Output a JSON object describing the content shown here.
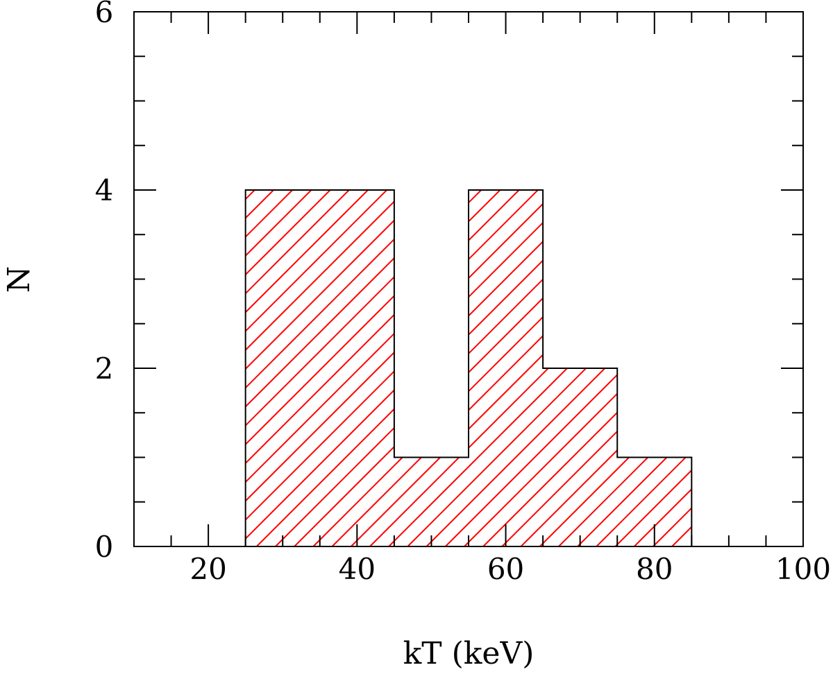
{
  "chart_data": {
    "type": "bar",
    "subtype": "histogram",
    "title": "",
    "xlabel": "kT (keV)",
    "ylabel": "N",
    "xlim": [
      10,
      100
    ],
    "ylim": [
      0,
      6
    ],
    "bin_edges": [
      25,
      35,
      45,
      55,
      65,
      75,
      85
    ],
    "values": [
      4,
      4,
      1,
      4,
      2,
      1
    ],
    "x_ticks": [
      20,
      40,
      60,
      80,
      100
    ],
    "x_tick_labels": [
      "20",
      "40",
      "60",
      "80",
      "100"
    ],
    "y_ticks": [
      0,
      2,
      4,
      6
    ],
    "y_tick_labels": [
      "0",
      "2",
      "4",
      "6"
    ],
    "x_minor_step": 5,
    "y_minor_step": 0.5,
    "grid": false,
    "fill": "diagonal hatch",
    "colors": {
      "hatch": "#ff0000",
      "outline": "#000000"
    }
  }
}
